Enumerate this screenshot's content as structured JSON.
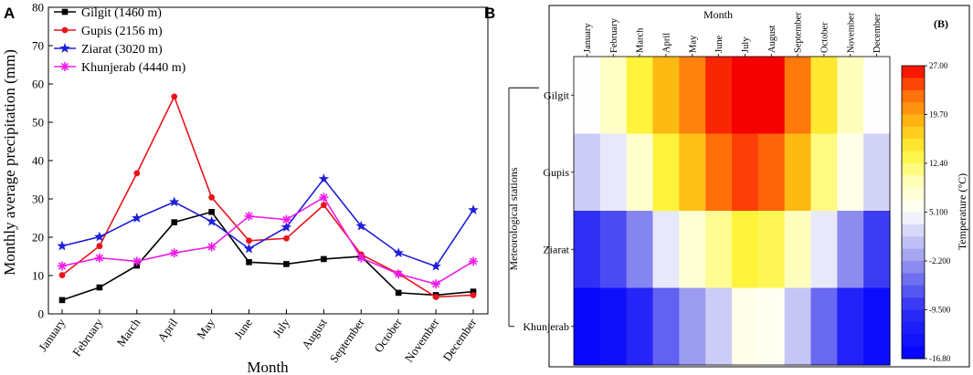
{
  "chart_data": [
    {
      "type": "line",
      "panel_label": "A",
      "title": "",
      "xlabel": "Month",
      "ylabel": "Monthly average precipitation (mm)",
      "ylim": [
        0,
        80
      ],
      "yticks": [
        0,
        10,
        20,
        30,
        40,
        50,
        60,
        70,
        80
      ],
      "categories": [
        "January",
        "February",
        "March",
        "April",
        "May",
        "June",
        "July",
        "August",
        "September",
        "October",
        "November",
        "December"
      ],
      "legend_position": "top-left",
      "series": [
        {
          "name": "Gilgit (1460 m)",
          "color": "#000000",
          "marker": "square",
          "values": [
            3.6,
            6.9,
            12.6,
            23.9,
            26.6,
            13.5,
            13.0,
            14.3,
            15.0,
            5.5,
            4.9,
            5.8
          ]
        },
        {
          "name": "Gupis (2156 m)",
          "color": "#e8141a",
          "marker": "circle",
          "values": [
            10.1,
            17.7,
            36.7,
            56.7,
            30.4,
            19.1,
            19.7,
            28.4,
            15.5,
            10.5,
            4.4,
            4.9
          ]
        },
        {
          "name": "Ziarat (3020 m)",
          "color": "#1f1fd6",
          "marker": "star",
          "values": [
            17.7,
            20.1,
            25.0,
            29.2,
            24.1,
            17.0,
            22.6,
            35.2,
            22.9,
            15.9,
            12.4,
            27.1
          ]
        },
        {
          "name": "Khunjerab (4440 m)",
          "color": "#ef1de8",
          "marker": "asterisk",
          "values": [
            12.5,
            14.6,
            13.7,
            15.9,
            17.5,
            25.5,
            24.6,
            30.4,
            14.6,
            10.4,
            7.8,
            13.7
          ]
        }
      ]
    },
    {
      "type": "heatmap",
      "panel_label": "B",
      "corner_label": "(B)",
      "title": "",
      "xlabel": "Month",
      "ylabel": "Meteorological stations",
      "colorbar_label": "Temperature (°C)",
      "colorbar_range": [
        -16.8,
        27.0
      ],
      "colorbar_ticks": [
        "27.00",
        "19.70",
        "12.40",
        "5.100",
        "-2.200",
        "-9.500",
        "-16.80"
      ],
      "colorbar_tick_values": [
        27.0,
        19.7,
        12.4,
        5.1,
        -2.2,
        -9.5,
        -16.8
      ],
      "x": [
        "January",
        "February",
        "March",
        "April",
        "May",
        "June",
        "July",
        "August",
        "September",
        "October",
        "November",
        "December"
      ],
      "y": [
        "Gilgit",
        "Gupis",
        "Ziarat",
        "Khunjerab"
      ],
      "values": [
        [
          5.0,
          9.0,
          14.0,
          18.5,
          21.5,
          25.5,
          28.0,
          27.0,
          22.0,
          15.0,
          9.5,
          5.0
        ],
        [
          1.5,
          3.5,
          8.5,
          14.0,
          18.0,
          22.5,
          24.5,
          23.0,
          18.5,
          11.5,
          6.5,
          2.0
        ],
        [
          -9.5,
          -7.5,
          -3.5,
          3.5,
          8.0,
          11.0,
          14.0,
          13.0,
          9.5,
          3.5,
          -3.0,
          -8.5
        ],
        [
          -15.5,
          -14.5,
          -11.0,
          -6.0,
          -2.0,
          1.5,
          6.5,
          6.0,
          1.0,
          -5.5,
          -11.5,
          -15.0
        ]
      ]
    }
  ]
}
